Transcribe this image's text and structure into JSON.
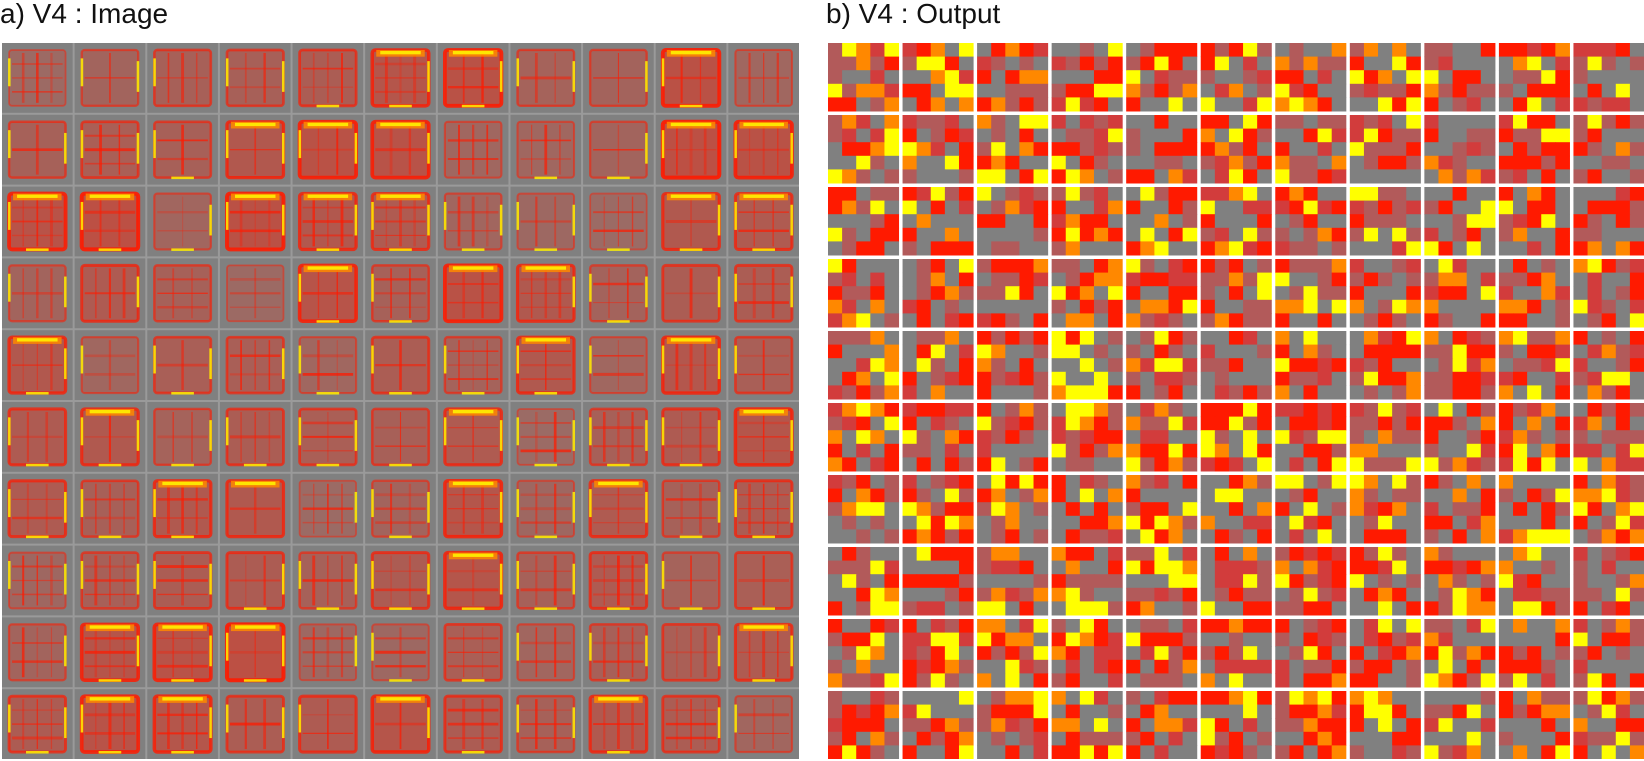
{
  "panels": [
    {
      "label": "a) V4 : Image",
      "grid": {
        "rows": 10,
        "cols": 11
      }
    },
    {
      "label": "b) V4 : Output",
      "grid": {
        "rows": 10,
        "cols": 11
      }
    }
  ],
  "colors": {
    "background_gray": "#808080",
    "grid_line_a": "#9a9a9a",
    "grid_line_b": "#ffffff",
    "red": "#ff1a00",
    "dark_red": "#d23c3c",
    "orange": "#ff8800",
    "yellow": "#ffff00",
    "muted_red": "#b25a5a"
  }
}
